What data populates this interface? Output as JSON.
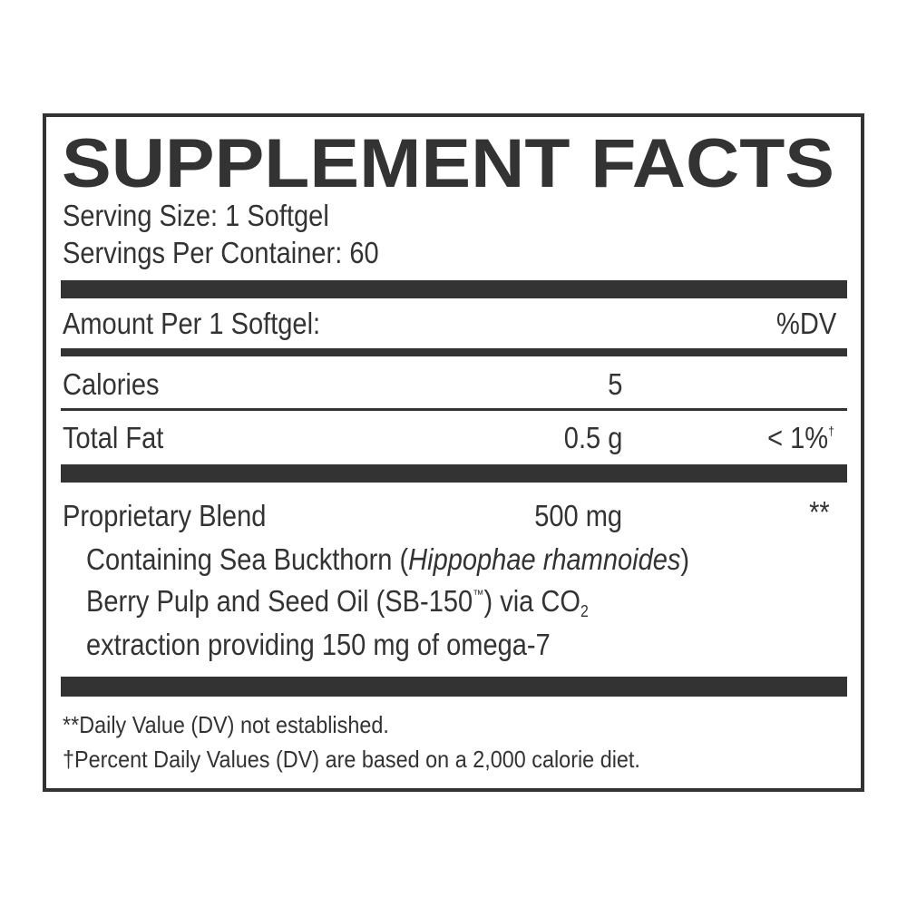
{
  "title": "SUPPLEMENT FACTS",
  "serving_size": "Serving Size: 1 Softgel",
  "servings_per_container": "Servings Per Container: 60",
  "header": {
    "amount_label": "Amount Per 1 Softgel:",
    "dv_label": "%DV"
  },
  "rows": [
    {
      "name": "Calories",
      "amount": "5",
      "dv": ""
    },
    {
      "name": "Total Fat",
      "amount": "0.5 g",
      "dv": "< 1%",
      "dv_mark": "†"
    },
    {
      "name": "Proprietary Blend",
      "amount": "500 mg",
      "dv": "**"
    }
  ],
  "blend": {
    "line1_pre": "Containing Sea Buckthorn (",
    "line1_italic": "Hippophae rhamnoides",
    "line1_post": ")",
    "line2_pre": "Berry Pulp and Seed Oil (SB-150",
    "line2_tm": "™",
    "line2_mid": ") via CO",
    "line2_sub": "2",
    "line3": "extraction providing 150 mg of omega-7"
  },
  "footnotes": [
    {
      "mark": "**",
      "text": "Daily Value (DV) not established."
    },
    {
      "mark": "†",
      "text": "Percent Daily Values (DV) are based on a 2,000 calorie diet."
    }
  ],
  "colors": {
    "ink": "#333333",
    "background": "#ffffff"
  }
}
